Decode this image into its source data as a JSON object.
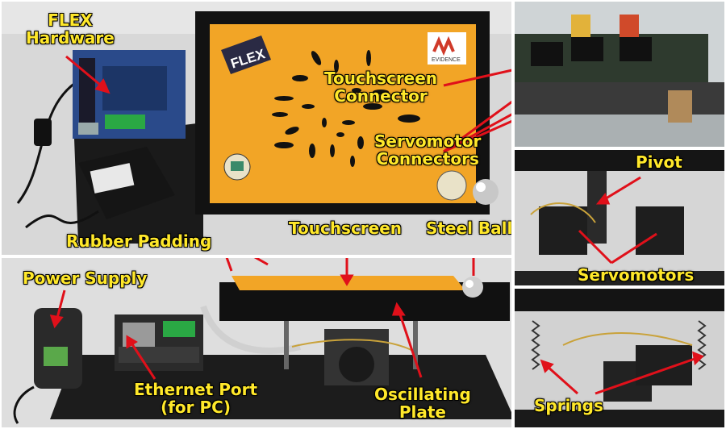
{
  "labels": {
    "flex_hardware": [
      "FLEX",
      "Hardware"
    ],
    "touchscreen_connector": [
      "Touchscreen",
      "Connector"
    ],
    "servomotor_connectors": [
      "Servomotor",
      "Connectors"
    ],
    "rubber_padding": "Rubber Padding",
    "touchscreen": "Touchscreen",
    "steel_ball": "Steel Ball",
    "power_supply": "Power Supply",
    "ethernet_port": [
      "Ethernet Port",
      "(for PC)"
    ],
    "oscillating_plate": [
      "Oscillating",
      "Plate"
    ],
    "pivot": "Pivot",
    "servomotors": "Servomotors",
    "springs": "Springs"
  },
  "board_prints": {
    "flex_logo": "FLEX",
    "evidence_logo": "EVIDENCE"
  },
  "colors": {
    "label_text": "#ffe82a",
    "arrow": "#e0101a",
    "touch_panel": "#f2a526",
    "frame": "#121212"
  }
}
